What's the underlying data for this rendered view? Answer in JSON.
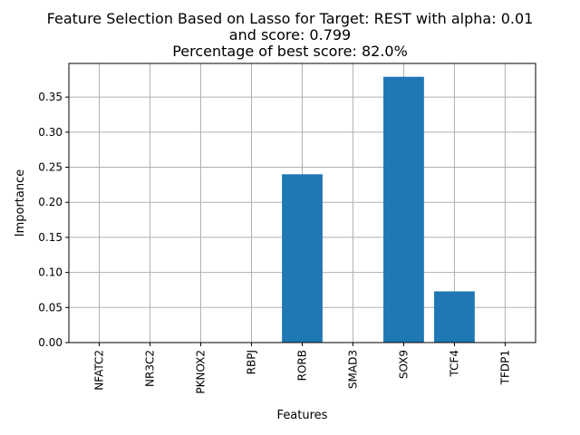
{
  "chart_data": {
    "type": "bar",
    "title": "Feature Selection Based on Lasso for Target: REST with alpha: 0.01",
    "title_line2": "and score: 0.799",
    "title_line3": "Percentage of best score: 82.0%",
    "xlabel": "Features",
    "ylabel": "Importance",
    "categories": [
      "NFATC2",
      "NR3C2",
      "PKNOX2",
      "RBPJ",
      "RORB",
      "SMAD3",
      "SOX9",
      "TCF4",
      "TFDP1"
    ],
    "values": [
      0.0,
      0.0,
      0.0,
      0.0,
      0.24,
      0.0,
      0.379,
      0.073,
      0.0
    ],
    "yticks": [
      "0.00",
      "0.05",
      "0.10",
      "0.15",
      "0.20",
      "0.25",
      "0.30",
      "0.35"
    ],
    "ylim": [
      0,
      0.398
    ],
    "grid": true,
    "bar_color": "#1f77b4"
  }
}
